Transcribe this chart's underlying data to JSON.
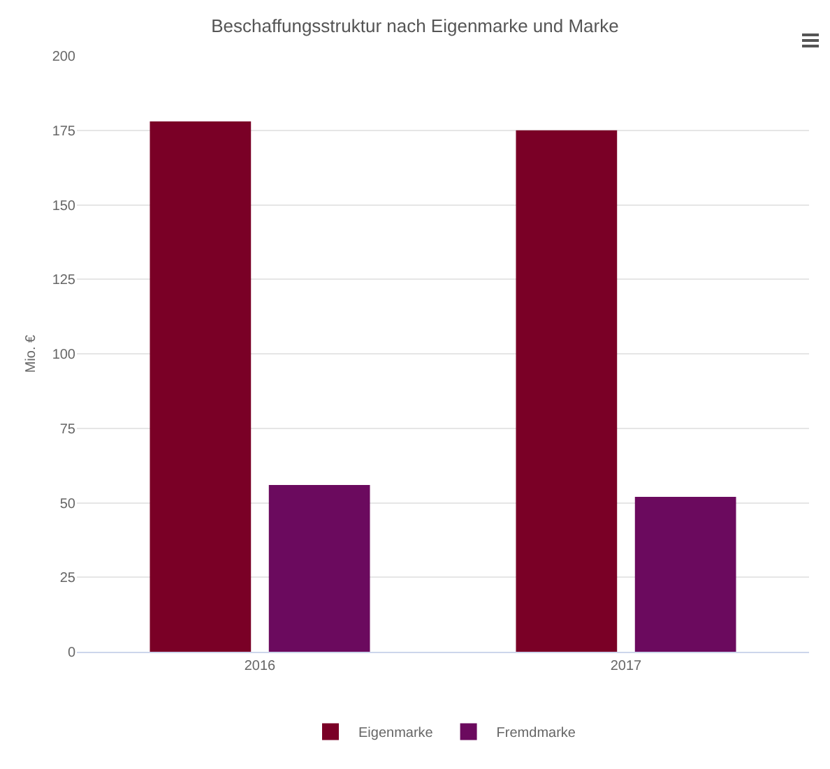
{
  "chart_data": {
    "type": "bar",
    "title": "Beschaffungsstruktur nach Eigenmarke und Marke",
    "ylabel": "Mio. €",
    "categories": [
      "2016",
      "2017"
    ],
    "series": [
      {
        "name": "Eigenmarke",
        "color": "#7a0026",
        "values": [
          178,
          175
        ]
      },
      {
        "name": "Fremdmarke",
        "color": "#6b0a5e",
        "values": [
          56,
          52
        ]
      }
    ],
    "ylim": [
      0,
      200
    ],
    "yticks": [
      0,
      25,
      50,
      75,
      100,
      125,
      150,
      175,
      200
    ],
    "grid": "y",
    "legend": "bottom"
  }
}
